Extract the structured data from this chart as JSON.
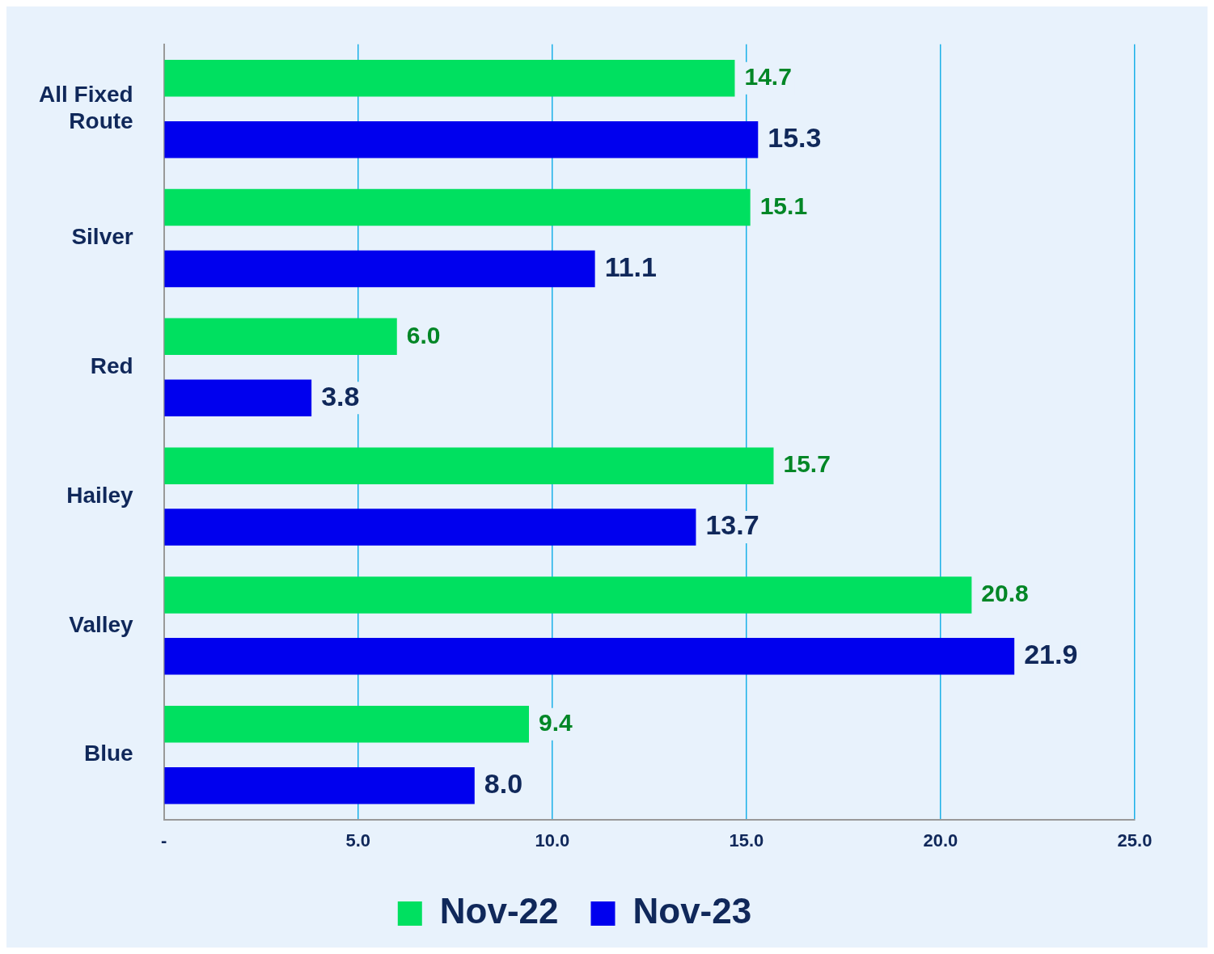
{
  "chart_data": {
    "type": "bar",
    "orientation": "horizontal",
    "categories": [
      "All Fixed Route",
      "Silver",
      "Red",
      "Hailey",
      "Valley",
      "Blue"
    ],
    "series": [
      {
        "name": "Nov-22",
        "color": "#00e060",
        "values": [
          14.7,
          15.1,
          6.0,
          15.7,
          20.8,
          9.4
        ],
        "value_labels": [
          "14.7",
          "15.1",
          "6.0",
          "15.7",
          "20.8",
          "9.4"
        ]
      },
      {
        "name": "Nov-23",
        "color": "#0000ee",
        "values": [
          15.3,
          11.1,
          3.8,
          13.7,
          21.9,
          8.0
        ],
        "value_labels": [
          "15.3",
          "11.1",
          "3.8",
          "13.7",
          "21.9",
          "8.0"
        ]
      }
    ],
    "xlim": [
      0,
      25
    ],
    "xticks": [
      {
        "value": 0,
        "label": "-"
      },
      {
        "value": 5,
        "label": "5.0"
      },
      {
        "value": 10,
        "label": "10.0"
      },
      {
        "value": 15,
        "label": "15.0"
      },
      {
        "value": 20,
        "label": "20.0"
      },
      {
        "value": 25,
        "label": "25.0"
      }
    ],
    "grid": "x",
    "legend": "bottom"
  }
}
